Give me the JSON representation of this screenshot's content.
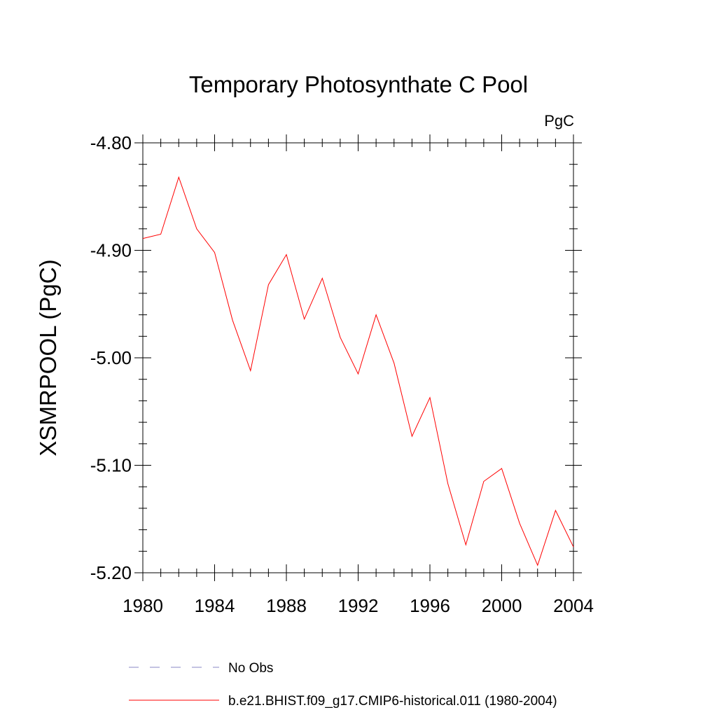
{
  "chart_data": {
    "type": "line",
    "title": "Temporary Photosynthate C Pool",
    "units_label": "PgC",
    "ylabel": "XSMRPOOL  (PgC)",
    "xlabel": "",
    "xlim": [
      1980,
      2004
    ],
    "ylim": [
      -5.2,
      -4.8
    ],
    "x_ticks": [
      1980,
      1984,
      1988,
      1992,
      1996,
      2000,
      2004
    ],
    "x_tick_labels": [
      "1980",
      "1984",
      "1988",
      "1992",
      "1996",
      "2000",
      "2004"
    ],
    "y_ticks": [
      -4.8,
      -4.9,
      -5.0,
      -5.1,
      -5.2
    ],
    "y_tick_labels": [
      "-4.80",
      "-4.90",
      "-5.00",
      "-5.10",
      "-5.20"
    ],
    "grid": false,
    "legend_position": "bottom",
    "series": [
      {
        "name": "b.e21.BHIST.f09_g17.CMIP6-historical.011 (1980-2004)",
        "color": "#ff0000",
        "style": "solid",
        "x": [
          1980,
          1981,
          1982,
          1983,
          1984,
          1985,
          1986,
          1987,
          1988,
          1989,
          1990,
          1991,
          1992,
          1993,
          1994,
          1995,
          1996,
          1997,
          1998,
          1999,
          2000,
          2001,
          2002,
          2003,
          2004
        ],
        "y": [
          -4.889,
          -4.885,
          -4.832,
          -4.88,
          -4.902,
          -4.965,
          -5.012,
          -4.932,
          -4.904,
          -4.964,
          -4.926,
          -4.981,
          -5.015,
          -4.96,
          -5.005,
          -5.073,
          -5.037,
          -5.117,
          -5.174,
          -5.115,
          -5.103,
          -5.154,
          -5.193,
          -5.142,
          -5.176
        ]
      },
      {
        "name": "No Obs",
        "color": "#8a87c4",
        "style": "dashed",
        "x": [],
        "y": []
      }
    ]
  }
}
